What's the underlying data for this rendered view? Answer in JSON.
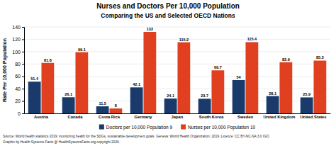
{
  "chart_data": {
    "type": "bar",
    "title": "Nurses and Doctors Per 10,000 Population",
    "subtitle": "Comparing the US and Selected OECD Nations",
    "categories": [
      "Austria",
      "Canada",
      "Costa Rica",
      "Germany",
      "Japan",
      "South Korea",
      "Sweden",
      "United Kingdom",
      "United States"
    ],
    "series": [
      {
        "name": "Doctors per 10,000 Population 9",
        "color": "#1a3a6b",
        "values": [
          51.4,
          26.1,
          11.5,
          42.1,
          24.1,
          23.7,
          54,
          28.1,
          25.9
        ]
      },
      {
        "name": "Nurses per 10,000 Population 10",
        "color": "#e04020",
        "values": [
          81.8,
          99.1,
          8,
          132,
          115.2,
          69.7,
          115.4,
          82.9,
          85.5
        ]
      }
    ],
    "ylabel": "Rate Per 10,000 Population",
    "ylim": [
      0,
      140
    ],
    "yticks": [
      0,
      20,
      40,
      60,
      80,
      100,
      120,
      140
    ],
    "grid": true,
    "data_labels": true,
    "legend": "bottom",
    "annotations": [
      "Source: World health statistics 2019: monitoring health for the SDGs, sustainable development goals. Geneva: World Health Organization; 2019. Licence: CC BY-NC-SA 3.0 IGO.",
      "Graphic by Health Systems Facts @ HealthSystemsFacts.org copyright 2020."
    ]
  }
}
